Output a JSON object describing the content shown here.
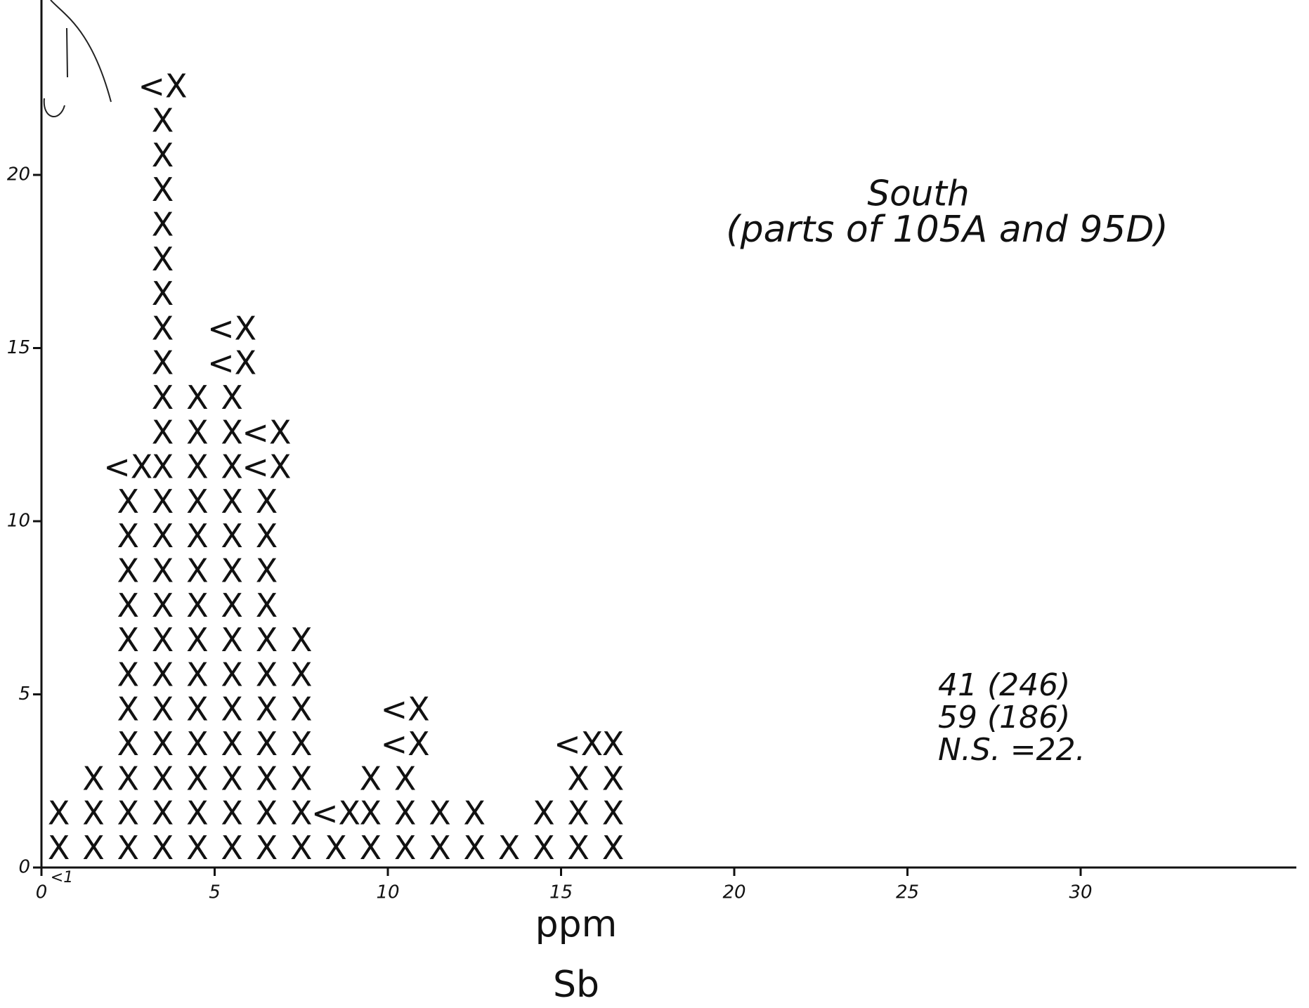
{
  "chart_data": {
    "type": "dot",
    "x": [
      0.5,
      1.5,
      2.5,
      3.5,
      4.5,
      5.5,
      6.5,
      7.5,
      8.5,
      9.5,
      10.5,
      11.5,
      12.5,
      13.5,
      14.5,
      15.5,
      16.5
    ],
    "series": [
      {
        "marker": "X",
        "color": "#111111",
        "values": [
          2,
          3,
          11,
          22,
          14,
          14,
          11,
          7,
          1,
          3,
          3,
          2,
          2,
          1,
          2,
          3,
          4
        ]
      },
      {
        "marker": "<X",
        "color": "#111111",
        "values": [
          0,
          0,
          1,
          1,
          0,
          2,
          2,
          0,
          1,
          0,
          2,
          0,
          0,
          0,
          0,
          1,
          0
        ]
      }
    ],
    "xlim": [
      0,
      36
    ],
    "xticks": [
      0,
      5,
      10,
      15,
      20,
      25,
      30
    ],
    "ylim": [
      0,
      25
    ],
    "yticks": [
      0,
      5,
      10,
      15,
      20
    ],
    "x_label": "ppm",
    "x_sublabel": "Sb",
    "x_note": "<1",
    "annotations": {
      "title": "South",
      "subtitle": "(parts of 105A and 95D)",
      "lines": [
        "41 (246)",
        "59 (186)",
        "N.S. =22."
      ]
    }
  }
}
